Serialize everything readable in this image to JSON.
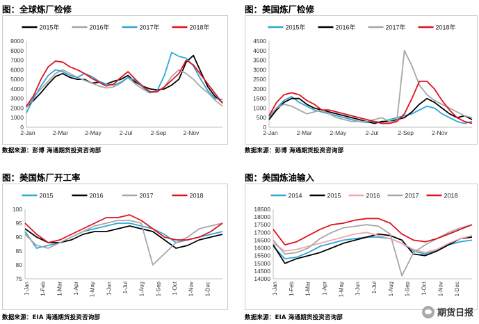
{
  "panels": [
    {
      "title": "图：全球炼厂检修",
      "source": "数据来源：彭博    海通期货投资咨询部"
    },
    {
      "title": "图：美国炼厂检修",
      "source": "数据来源：彭博    海通期货投资咨询部"
    },
    {
      "title": "图：美国炼厂开工率",
      "source": "数据来源：EIA    海通期货投资咨询部"
    },
    {
      "title": "图：美国炼油输入",
      "source": "数据来源：EIA    海通期货投资咨询部"
    }
  ],
  "watermark": "期货日报",
  "chart_data": [
    {
      "type": "line",
      "xlabels": [
        "2-Jan",
        "2-Mar",
        "2-May",
        "2-Jul",
        "2-Sep",
        "2-Nov"
      ],
      "ylim": [
        0,
        9000
      ],
      "yticks": [
        0,
        1000,
        2000,
        3000,
        4000,
        5000,
        6000,
        7000,
        8000,
        9000
      ],
      "legend": "top",
      "series": [
        {
          "name": "2015年",
          "color": "#000000",
          "values": [
            2100,
            2800,
            3600,
            4500,
            5300,
            5600,
            5200,
            5000,
            5000,
            4600,
            4700,
            4500,
            4800,
            5000,
            5400,
            4700,
            4300,
            4000,
            3900,
            4000,
            4400,
            5000,
            6800,
            7500,
            5800,
            4200,
            3200,
            2600
          ]
        },
        {
          "name": "2016年",
          "color": "#a6a6a6",
          "values": [
            2000,
            3200,
            4000,
            4800,
            5600,
            6000,
            5600,
            5200,
            4900,
            4600,
            4300,
            4100,
            4200,
            4600,
            5200,
            4500,
            4000,
            3600,
            3700,
            4200,
            5300,
            6000,
            5600,
            5000,
            4200,
            3600,
            2800,
            2200
          ]
        },
        {
          "name": "2017年",
          "color": "#2ea6d6",
          "values": [
            1500,
            3000,
            4300,
            5400,
            6000,
            5800,
            5400,
            5200,
            5600,
            5300,
            4800,
            4500,
            4400,
            4700,
            5200,
            4900,
            4200,
            3600,
            3800,
            5400,
            7800,
            7400,
            7200,
            6400,
            5000,
            3800,
            3000,
            2900
          ]
        },
        {
          "name": "2018年",
          "color": "#e0101e",
          "values": [
            2200,
            3300,
            5000,
            6300,
            6900,
            6800,
            6300,
            6000,
            5600,
            5100,
            4700,
            4300,
            4500,
            5200,
            5800,
            5000,
            4300,
            3700,
            3700,
            4200,
            4900,
            5600,
            7000,
            6500,
            5500,
            4500,
            3500,
            2500
          ]
        }
      ]
    },
    {
      "type": "line",
      "xlabels": [
        "2-Jan",
        "2-Mar",
        "2-May",
        "2-Jul",
        "2-Sep",
        "2-Nov"
      ],
      "ylim": [
        0,
        4500
      ],
      "yticks": [
        0,
        500,
        1000,
        1500,
        2000,
        2500,
        3000,
        3500,
        4000,
        4500
      ],
      "legend": "top",
      "series": [
        {
          "name": "2015年",
          "color": "#2ea6d6",
          "values": [
            500,
            1000,
            1400,
            1600,
            1300,
            1100,
            900,
            800,
            700,
            600,
            500,
            400,
            300,
            250,
            300,
            250,
            400,
            500,
            600,
            700,
            900,
            1100,
            1000,
            700,
            500,
            300,
            200,
            300
          ]
        },
        {
          "name": "2016年",
          "color": "#000000",
          "values": [
            400,
            900,
            1300,
            1500,
            1500,
            1200,
            1000,
            900,
            800,
            700,
            600,
            500,
            400,
            300,
            200,
            300,
            300,
            400,
            500,
            800,
            1200,
            1500,
            1300,
            1000,
            700,
            500,
            600,
            400
          ]
        },
        {
          "name": "2017年",
          "color": "#a6a6a6",
          "values": [
            600,
            1000,
            1200,
            1100,
            900,
            700,
            800,
            900,
            700,
            500,
            400,
            300,
            300,
            300,
            400,
            500,
            300,
            300,
            4000,
            3200,
            2200,
            1700,
            1400,
            1200,
            1000,
            800,
            600,
            500
          ]
        },
        {
          "name": "2018年",
          "color": "#e0101e",
          "values": [
            600,
            1300,
            1700,
            1800,
            1700,
            1400,
            1200,
            900,
            900,
            800,
            700,
            600,
            500,
            400,
            300,
            200,
            200,
            300,
            700,
            1500,
            2400,
            2400,
            2000,
            1400,
            900,
            500,
            300,
            200
          ]
        }
      ]
    },
    {
      "type": "line",
      "xlabels": [
        "1-Jan",
        "1-Feb",
        "1-Mar",
        "1-Apr",
        "1-May",
        "1-Jun",
        "1-Jul",
        "1-Aug",
        "1-Sep",
        "1-Oct",
        "1-Nov",
        "1-Dec"
      ],
      "ylim": [
        75,
        100
      ],
      "yticks": [
        75,
        80,
        85,
        90,
        95,
        100
      ],
      "legend": "top",
      "series": [
        {
          "name": "2015",
          "color": "#2ea6d6",
          "values": [
            92,
            86,
            87,
            88,
            90,
            92,
            93,
            94,
            95,
            95,
            94,
            93,
            91,
            88,
            89,
            90,
            91,
            92
          ]
        },
        {
          "name": "2016",
          "color": "#000000",
          "values": [
            93,
            90,
            88,
            88,
            89,
            91,
            92,
            92,
            93,
            94,
            93,
            92,
            89,
            86,
            87,
            89,
            90,
            91
          ]
        },
        {
          "name": "2017",
          "color": "#a6a6a6",
          "values": [
            91,
            87,
            86,
            88,
            90,
            92,
            94,
            95,
            96,
            96,
            95,
            80,
            84,
            88,
            90,
            93,
            94,
            95
          ]
        },
        {
          "name": "2018",
          "color": "#e0101e",
          "values": [
            95,
            91,
            88,
            89,
            91,
            93,
            95,
            97,
            97,
            98,
            96,
            93,
            90,
            89,
            89,
            90,
            92,
            95
          ]
        }
      ]
    },
    {
      "type": "line",
      "xlabels": [
        "1-Jan",
        "1-Feb",
        "1-Mar",
        "1-Apr",
        "1-May",
        "1-Jun",
        "1-Jul",
        "1-Aug",
        "1-Sep",
        "1-Oct",
        "1-Nov",
        "1-Dec"
      ],
      "ylim": [
        14000,
        18500
      ],
      "yticks": [
        14000,
        14500,
        15000,
        15500,
        16000,
        16500,
        17000,
        17500,
        18000,
        18500
      ],
      "legend": "top",
      "series": [
        {
          "name": "2014",
          "color": "#2ea6d6",
          "values": [
            16100,
            15300,
            15400,
            15700,
            16100,
            16300,
            16500,
            16600,
            16700,
            16700,
            16600,
            16300,
            15800,
            15600,
            15900,
            16200,
            16400,
            16500
          ]
        },
        {
          "name": "2015",
          "color": "#000000",
          "values": [
            16200,
            15000,
            15300,
            15500,
            15700,
            16000,
            16300,
            16500,
            16700,
            16900,
            16800,
            16500,
            15600,
            15500,
            15800,
            16200,
            16600,
            16700
          ]
        },
        {
          "name": "2016",
          "color": "#f4a6ae",
          "values": [
            16300,
            15800,
            15900,
            16100,
            16300,
            16500,
            16700,
            16900,
            17000,
            16800,
            16600,
            16300,
            15900,
            15700,
            15900,
            16300,
            16600,
            16800
          ]
        },
        {
          "name": "2017",
          "color": "#a6a6a6",
          "values": [
            16500,
            15600,
            15700,
            16000,
            16600,
            17000,
            17300,
            17400,
            17500,
            17400,
            16900,
            14200,
            15700,
            16200,
            16600,
            17000,
            17300,
            17500
          ]
        },
        {
          "name": "2018",
          "color": "#e0101e",
          "values": [
            17200,
            16200,
            16400,
            16800,
            17200,
            17500,
            17600,
            17800,
            17900,
            17900,
            17600,
            16900,
            16500,
            16400,
            16600,
            16900,
            17200,
            17500
          ]
        }
      ]
    }
  ]
}
